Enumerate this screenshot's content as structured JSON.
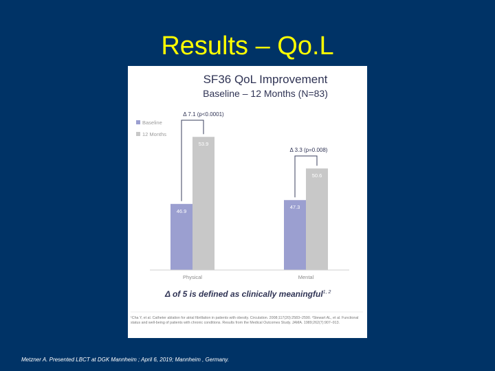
{
  "slide": {
    "title": "Results – Qo.L",
    "footer": "Metzner A. Presented LBCT at DGK Mannheim ; April 6, 2019; Mannheim , Germany."
  },
  "panel": {
    "definition_text": "Δ of 5 is defined as clinically meaningful",
    "definition_superscript": "1, 2",
    "references": "¹Cha Y, et al. Catheter ablation for atrial fibrillation in patients with obesity. Circulation. 2008;117(20):2583–2590. ²Stewart AL, et al. Functional status and well-being of patients with chronic conditions. Results from the Medical Outcomes Study. JAMA. 1989;262(7):907–913."
  },
  "colors": {
    "baseline": "#9b9fd0",
    "twelve_months": "#c8c8c8",
    "bracket": "#3a3f5e",
    "text": "#2f3354"
  },
  "chart_data": {
    "type": "bar",
    "title": "SF36 QoL Improvement",
    "subtitle": "Baseline – 12 Months (N=83)",
    "categories": [
      "Physical",
      "Mental"
    ],
    "series": [
      {
        "name": "Baseline",
        "values": [
          46.9,
          47.3
        ]
      },
      {
        "name": "12 Months",
        "values": [
          53.9,
          50.6
        ]
      }
    ],
    "data_labels": [
      [
        "46.9",
        "53.9"
      ],
      [
        "47.3",
        "50.6"
      ]
    ],
    "annotations": [
      "Δ 7.1 (p<0.0001)",
      "Δ 3.3 (p=0.008)"
    ],
    "ylim": [
      40,
      57
    ],
    "legend": "top-left",
    "grid": false
  }
}
